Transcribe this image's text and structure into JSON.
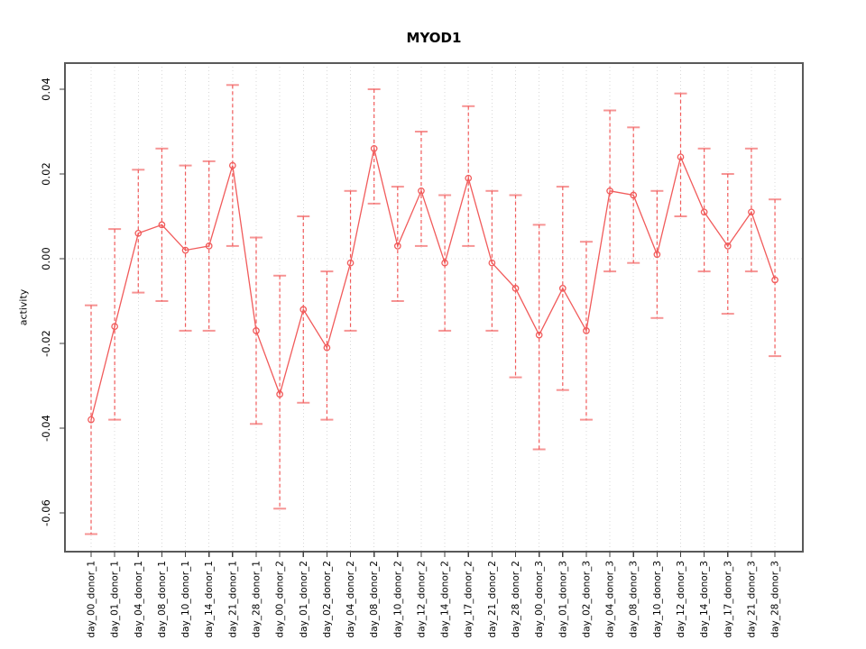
{
  "window": {
    "background": "#ffffff"
  },
  "chart_data": {
    "type": "line",
    "title": "MYOD1",
    "ylabel": "activity",
    "xlabel": "",
    "legend_position": "none",
    "grid": "vertical dotted gridline per category plus dotted zero line",
    "ylim": [
      -0.069,
      0.046
    ],
    "yticks": [
      0.04,
      0.02,
      0.0,
      -0.02,
      -0.04,
      -0.06
    ],
    "colors": {
      "series": "#f15b5b",
      "errorbar": "#f15b5b",
      "grid": "#d8d8d8",
      "frame": "#595959",
      "tick": "#404040",
      "text": "#000000"
    },
    "marker": "open-circle",
    "errorbar_style": "dashed vertical line with horizontal caps",
    "categories": [
      "day_00_donor_1",
      "day_01_donor_1",
      "day_04_donor_1",
      "day_08_donor_1",
      "day_10_donor_1",
      "day_14_donor_1",
      "day_21_donor_1",
      "day_28_donor_1",
      "day_00_donor_2",
      "day_01_donor_2",
      "day_02_donor_2",
      "day_04_donor_2",
      "day_08_donor_2",
      "day_10_donor_2",
      "day_12_donor_2",
      "day_14_donor_2",
      "day_17_donor_2",
      "day_21_donor_2",
      "day_28_donor_2",
      "day_00_donor_3",
      "day_01_donor_3",
      "day_02_donor_3",
      "day_04_donor_3",
      "day_08_donor_3",
      "day_10_donor_3",
      "day_12_donor_3",
      "day_14_donor_3",
      "day_17_donor_3",
      "day_21_donor_3",
      "day_28_donor_3"
    ],
    "series": [
      {
        "name": "activity",
        "values": [
          -0.038,
          -0.016,
          0.006,
          0.008,
          0.002,
          0.003,
          0.022,
          -0.017,
          -0.032,
          -0.012,
          -0.021,
          -0.001,
          0.026,
          0.003,
          0.016,
          -0.001,
          0.019,
          -0.001,
          -0.007,
          -0.018,
          -0.007,
          -0.017,
          0.016,
          0.015,
          0.001,
          0.024,
          0.011,
          0.003,
          0.011,
          -0.005
        ],
        "err_low": [
          -0.065,
          -0.038,
          -0.008,
          -0.01,
          -0.017,
          -0.017,
          0.003,
          -0.039,
          -0.059,
          -0.034,
          -0.038,
          -0.017,
          0.013,
          -0.01,
          0.003,
          -0.017,
          0.003,
          -0.017,
          -0.028,
          -0.045,
          -0.031,
          -0.038,
          -0.003,
          -0.001,
          -0.014,
          0.01,
          -0.003,
          -0.013,
          -0.003,
          -0.023
        ],
        "err_high": [
          -0.011,
          0.007,
          0.021,
          0.026,
          0.022,
          0.023,
          0.041,
          0.005,
          -0.004,
          0.01,
          -0.003,
          0.016,
          0.04,
          0.017,
          0.03,
          0.015,
          0.036,
          0.016,
          0.015,
          0.008,
          0.017,
          0.004,
          0.035,
          0.031,
          0.016,
          0.039,
          0.026,
          0.02,
          0.026,
          0.014
        ]
      }
    ]
  }
}
